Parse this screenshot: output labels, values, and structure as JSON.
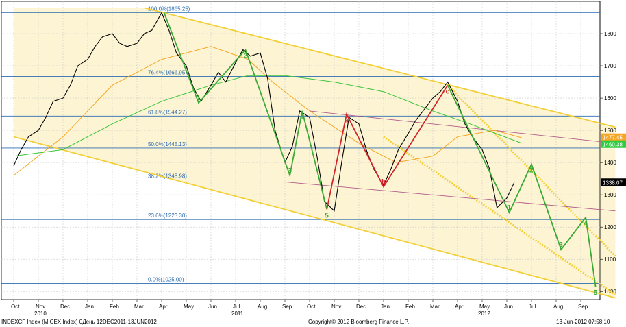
{
  "chart_data": {
    "type": "line",
    "title": "",
    "xlabel": "",
    "ylabel": "",
    "ylim": [
      975,
      1900
    ],
    "x_months": [
      "Oct",
      "Nov",
      "Dec",
      "Jan",
      "Feb",
      "Mar",
      "Apr",
      "May",
      "Jun",
      "Jul",
      "Aug",
      "Sep",
      "Oct",
      "Nov",
      "Dec",
      "Jan",
      "Feb",
      "Mar",
      "Apr",
      "May",
      "Jun",
      "Jul",
      "Aug",
      "Sep"
    ],
    "x_years": [
      {
        "label": "2010",
        "at": 1
      },
      {
        "label": "2011",
        "at": 9
      },
      {
        "label": "2012",
        "at": 19
      }
    ],
    "yticks": [
      1000,
      1100,
      1200,
      1300,
      1400,
      1500,
      1600,
      1700,
      1800
    ],
    "fib_levels": [
      {
        "value": 1865.25,
        "label": "100.0%(1865.25)"
      },
      {
        "value": 1666.95,
        "label": "76.4%(1666.95)"
      },
      {
        "value": 1544.27,
        "label": "61.8%(1544.27)"
      },
      {
        "value": 1445.13,
        "label": "50.0%(1445.13)"
      },
      {
        "value": 1345.98,
        "label": "38.2%(1345.98)"
      },
      {
        "value": 1223.3,
        "label": "23.6%(1223.30)"
      },
      {
        "value": 1025.0,
        "label": "0.0%(1025.00)"
      }
    ],
    "last_value_badges": [
      {
        "label": "1477.45",
        "value": 1477.45,
        "color": "#f5a623"
      },
      {
        "label": "1460.38",
        "value": 1460.38,
        "color": "#2ecc40"
      },
      {
        "label": "1338.07",
        "value": 1338.07,
        "color": "#000000"
      }
    ],
    "price_points": [
      [
        0,
        1390
      ],
      [
        0.3,
        1440
      ],
      [
        0.6,
        1480
      ],
      [
        1,
        1500
      ],
      [
        1.3,
        1540
      ],
      [
        1.6,
        1590
      ],
      [
        2,
        1600
      ],
      [
        2.3,
        1640
      ],
      [
        2.6,
        1700
      ],
      [
        3,
        1720
      ],
      [
        3.3,
        1760
      ],
      [
        3.6,
        1790
      ],
      [
        4,
        1800
      ],
      [
        4.3,
        1770
      ],
      [
        4.6,
        1760
      ],
      [
        5,
        1770
      ],
      [
        5.3,
        1800
      ],
      [
        5.6,
        1810
      ],
      [
        6,
        1865
      ],
      [
        6.3,
        1810
      ],
      [
        6.6,
        1740
      ],
      [
        7,
        1700
      ],
      [
        7.3,
        1630
      ],
      [
        7.6,
        1590
      ],
      [
        8,
        1640
      ],
      [
        8.3,
        1680
      ],
      [
        8.6,
        1650
      ],
      [
        9,
        1710
      ],
      [
        9.3,
        1750
      ],
      [
        9.6,
        1730
      ],
      [
        10,
        1740
      ],
      [
        10.3,
        1660
      ],
      [
        10.6,
        1500
      ],
      [
        11,
        1400
      ],
      [
        11.3,
        1450
      ],
      [
        11.6,
        1560
      ],
      [
        12,
        1540
      ],
      [
        12.3,
        1420
      ],
      [
        12.6,
        1280
      ],
      [
        13,
        1250
      ],
      [
        13.3,
        1400
      ],
      [
        13.6,
        1540
      ],
      [
        14,
        1520
      ],
      [
        14.3,
        1440
      ],
      [
        14.6,
        1380
      ],
      [
        15,
        1330
      ],
      [
        15.3,
        1380
      ],
      [
        15.6,
        1440
      ],
      [
        16,
        1490
      ],
      [
        16.3,
        1530
      ],
      [
        16.6,
        1560
      ],
      [
        17,
        1600
      ],
      [
        17.3,
        1620
      ],
      [
        17.6,
        1650
      ],
      [
        18,
        1590
      ],
      [
        18.3,
        1520
      ],
      [
        18.6,
        1480
      ],
      [
        19,
        1440
      ],
      [
        19.3,
        1380
      ],
      [
        19.6,
        1260
      ],
      [
        20,
        1290
      ],
      [
        20.3,
        1338
      ]
    ],
    "wave_green_past": [
      {
        "x": 6.1,
        "y": 1865
      },
      {
        "x": 7.5,
        "y": 1585,
        "label": "1"
      },
      {
        "x": 9.4,
        "y": 1750,
        "label": "2"
      },
      {
        "x": 11.2,
        "y": 1360,
        "label": "3"
      },
      {
        "x": 11.7,
        "y": 1560,
        "label": "4"
      },
      {
        "x": 12.7,
        "y": 1255,
        "label": "5"
      }
    ],
    "wave_red": [
      {
        "x": 12.7,
        "y": 1255
      },
      {
        "x": 13.5,
        "y": 1550,
        "label": "a"
      },
      {
        "x": 15,
        "y": 1325,
        "label": "b"
      },
      {
        "x": 17.6,
        "y": 1640,
        "label": "c"
      }
    ],
    "wave_green_future": [
      {
        "x": 17.6,
        "y": 1640
      },
      {
        "x": 20.1,
        "y": 1245,
        "label": "1"
      },
      {
        "x": 21,
        "y": 1395,
        "label": "2"
      },
      {
        "x": 22.2,
        "y": 1130,
        "label": "3"
      },
      {
        "x": 23.2,
        "y": 1230,
        "label": "4"
      },
      {
        "x": 23.6,
        "y": 1015,
        "label": "5"
      }
    ],
    "ma_orange": [
      [
        0,
        1360
      ],
      [
        2,
        1480
      ],
      [
        4,
        1640
      ],
      [
        6,
        1720
      ],
      [
        8,
        1760
      ],
      [
        9.5,
        1720
      ],
      [
        10.5,
        1650
      ],
      [
        12,
        1560
      ],
      [
        14,
        1460
      ],
      [
        15.5,
        1400
      ],
      [
        17,
        1420
      ],
      [
        18,
        1480
      ],
      [
        19.5,
        1500
      ],
      [
        20.6,
        1477
      ]
    ],
    "ma_green": [
      [
        0,
        1420
      ],
      [
        2,
        1440
      ],
      [
        4,
        1520
      ],
      [
        6,
        1590
      ],
      [
        8,
        1640
      ],
      [
        9.5,
        1670
      ],
      [
        11,
        1670
      ],
      [
        13,
        1650
      ],
      [
        15,
        1620
      ],
      [
        17,
        1560
      ],
      [
        18.5,
        1520
      ],
      [
        20.6,
        1460
      ]
    ],
    "channel_upper": [
      [
        5.3,
        1880
      ],
      [
        24.4,
        1510
      ]
    ],
    "channel_lower": [
      [
        0,
        1480
      ],
      [
        24.4,
        980
      ]
    ],
    "inner_upper": [
      [
        12,
        1560
      ],
      [
        24.4,
        1460
      ]
    ],
    "inner_lower": [
      [
        11,
        1340
      ],
      [
        24.4,
        1250
      ]
    ],
    "dotted_upper": [
      [
        17.6,
        1640
      ],
      [
        24.4,
        1110
      ]
    ],
    "dotted_lower": [
      [
        15,
        1480
      ],
      [
        24.4,
        990
      ]
    ]
  },
  "footer": {
    "left": "INDEXCF Index (MICEX Index) 0День 12DEC2011-13JUN2012",
    "center": "Copyright© 2012 Bloomberg Finance L.P.",
    "right": "13-Jun-2012 07:58:10"
  }
}
